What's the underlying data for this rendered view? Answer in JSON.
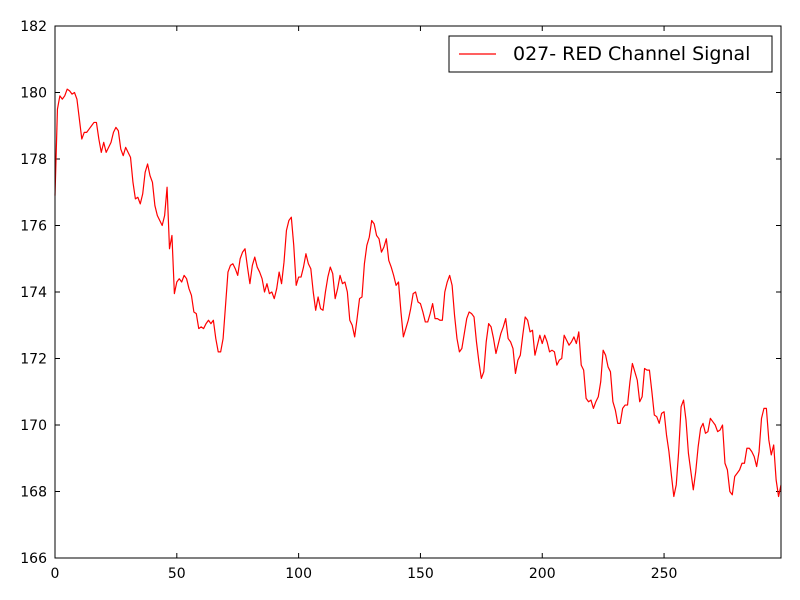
{
  "chart_data": {
    "type": "line",
    "title": "",
    "xlabel": "",
    "ylabel": "",
    "xlim": [
      0,
      298
    ],
    "ylim": [
      166,
      182
    ],
    "xticks": [
      0,
      50,
      100,
      150,
      200,
      250
    ],
    "yticks": [
      166,
      168,
      170,
      172,
      174,
      176,
      178,
      180,
      182
    ],
    "grid": false,
    "legend_position": "top-right",
    "series": [
      {
        "name": "027- RED Channel Signal",
        "color": "#ff0000",
        "points": [
          [
            0,
            176.9
          ],
          [
            1,
            179.5
          ],
          [
            2,
            179.9
          ],
          [
            3,
            179.8
          ],
          [
            4,
            179.9
          ],
          [
            5,
            180.1
          ],
          [
            6,
            180.05
          ],
          [
            7,
            179.95
          ],
          [
            8,
            180.0
          ],
          [
            9,
            179.8
          ],
          [
            10,
            179.2
          ],
          [
            11,
            178.6
          ],
          [
            12,
            178.8
          ],
          [
            13,
            178.8
          ],
          [
            14,
            178.9
          ],
          [
            15,
            179.0
          ],
          [
            16,
            179.1
          ],
          [
            17,
            179.1
          ],
          [
            18,
            178.6
          ],
          [
            19,
            178.2
          ],
          [
            20,
            178.5
          ],
          [
            21,
            178.2
          ],
          [
            22,
            178.35
          ],
          [
            23,
            178.5
          ],
          [
            24,
            178.8
          ],
          [
            25,
            178.95
          ],
          [
            26,
            178.85
          ],
          [
            27,
            178.3
          ],
          [
            28,
            178.1
          ],
          [
            29,
            178.35
          ],
          [
            30,
            178.2
          ],
          [
            31,
            178.05
          ],
          [
            32,
            177.3
          ],
          [
            33,
            176.8
          ],
          [
            34,
            176.85
          ],
          [
            35,
            176.65
          ],
          [
            36,
            176.95
          ],
          [
            37,
            177.6
          ],
          [
            38,
            177.85
          ],
          [
            39,
            177.5
          ],
          [
            40,
            177.3
          ],
          [
            41,
            176.6
          ],
          [
            42,
            176.3
          ],
          [
            43,
            176.15
          ],
          [
            44,
            176.0
          ],
          [
            45,
            176.3
          ],
          [
            46,
            177.15
          ],
          [
            47,
            175.3
          ],
          [
            48,
            175.7
          ],
          [
            49,
            173.95
          ],
          [
            50,
            174.3
          ],
          [
            51,
            174.4
          ],
          [
            52,
            174.3
          ],
          [
            53,
            174.5
          ],
          [
            54,
            174.4
          ],
          [
            55,
            174.1
          ],
          [
            56,
            173.9
          ],
          [
            57,
            173.4
          ],
          [
            58,
            173.35
          ],
          [
            59,
            172.9
          ],
          [
            60,
            172.95
          ],
          [
            61,
            172.9
          ],
          [
            62,
            173.05
          ],
          [
            63,
            173.15
          ],
          [
            64,
            173.05
          ],
          [
            65,
            173.15
          ],
          [
            66,
            172.6
          ],
          [
            67,
            172.2
          ],
          [
            68,
            172.2
          ],
          [
            69,
            172.6
          ],
          [
            70,
            173.6
          ],
          [
            71,
            174.6
          ],
          [
            72,
            174.8
          ],
          [
            73,
            174.85
          ],
          [
            74,
            174.7
          ],
          [
            75,
            174.5
          ],
          [
            76,
            175.0
          ],
          [
            77,
            175.2
          ],
          [
            78,
            175.3
          ],
          [
            79,
            174.75
          ],
          [
            80,
            174.25
          ],
          [
            81,
            174.8
          ],
          [
            82,
            175.05
          ],
          [
            83,
            174.75
          ],
          [
            84,
            174.6
          ],
          [
            85,
            174.4
          ],
          [
            86,
            174.0
          ],
          [
            87,
            174.25
          ],
          [
            88,
            173.95
          ],
          [
            89,
            174.0
          ],
          [
            90,
            173.8
          ],
          [
            91,
            174.1
          ],
          [
            92,
            174.6
          ],
          [
            93,
            174.25
          ],
          [
            94,
            174.9
          ],
          [
            95,
            175.85
          ],
          [
            96,
            176.15
          ],
          [
            97,
            176.25
          ],
          [
            98,
            175.4
          ],
          [
            99,
            174.2
          ],
          [
            100,
            174.45
          ],
          [
            101,
            174.45
          ],
          [
            102,
            174.75
          ],
          [
            103,
            175.15
          ],
          [
            104,
            174.85
          ],
          [
            105,
            174.7
          ],
          [
            106,
            174.0
          ],
          [
            107,
            173.45
          ],
          [
            108,
            173.85
          ],
          [
            109,
            173.5
          ],
          [
            110,
            173.45
          ],
          [
            111,
            174.0
          ],
          [
            112,
            174.45
          ],
          [
            113,
            174.75
          ],
          [
            114,
            174.55
          ],
          [
            115,
            173.8
          ],
          [
            116,
            174.1
          ],
          [
            117,
            174.5
          ],
          [
            118,
            174.25
          ],
          [
            119,
            174.3
          ],
          [
            120,
            174.0
          ],
          [
            121,
            173.15
          ],
          [
            122,
            173.0
          ],
          [
            123,
            172.65
          ],
          [
            124,
            173.2
          ],
          [
            125,
            173.8
          ],
          [
            126,
            173.85
          ],
          [
            127,
            174.85
          ],
          [
            128,
            175.4
          ],
          [
            129,
            175.65
          ],
          [
            130,
            176.15
          ],
          [
            131,
            176.05
          ],
          [
            132,
            175.7
          ],
          [
            133,
            175.6
          ],
          [
            134,
            175.2
          ],
          [
            135,
            175.35
          ],
          [
            136,
            175.6
          ],
          [
            137,
            174.95
          ],
          [
            138,
            174.75
          ],
          [
            139,
            174.5
          ],
          [
            140,
            174.2
          ],
          [
            141,
            174.3
          ],
          [
            142,
            173.4
          ],
          [
            143,
            172.65
          ],
          [
            144,
            172.9
          ],
          [
            145,
            173.15
          ],
          [
            146,
            173.5
          ],
          [
            147,
            173.95
          ],
          [
            148,
            174.0
          ],
          [
            149,
            173.7
          ],
          [
            150,
            173.65
          ],
          [
            151,
            173.4
          ],
          [
            152,
            173.1
          ],
          [
            153,
            173.1
          ],
          [
            154,
            173.35
          ],
          [
            155,
            173.65
          ],
          [
            156,
            173.2
          ],
          [
            157,
            173.2
          ],
          [
            158,
            173.15
          ],
          [
            159,
            173.15
          ],
          [
            160,
            174.0
          ],
          [
            161,
            174.3
          ],
          [
            162,
            174.5
          ],
          [
            163,
            174.2
          ],
          [
            164,
            173.3
          ],
          [
            165,
            172.6
          ],
          [
            166,
            172.2
          ],
          [
            167,
            172.3
          ],
          [
            168,
            172.75
          ],
          [
            169,
            173.2
          ],
          [
            170,
            173.4
          ],
          [
            171,
            173.35
          ],
          [
            172,
            173.25
          ],
          [
            173,
            172.5
          ],
          [
            174,
            171.9
          ],
          [
            175,
            171.4
          ],
          [
            176,
            171.6
          ],
          [
            177,
            172.5
          ],
          [
            178,
            173.05
          ],
          [
            179,
            172.95
          ],
          [
            180,
            172.6
          ],
          [
            181,
            172.15
          ],
          [
            182,
            172.45
          ],
          [
            183,
            172.75
          ],
          [
            184,
            172.95
          ],
          [
            185,
            173.2
          ],
          [
            186,
            172.6
          ],
          [
            187,
            172.5
          ],
          [
            188,
            172.3
          ],
          [
            189,
            171.55
          ],
          [
            190,
            171.95
          ],
          [
            191,
            172.1
          ],
          [
            192,
            172.7
          ],
          [
            193,
            173.25
          ],
          [
            194,
            173.15
          ],
          [
            195,
            172.8
          ],
          [
            196,
            172.85
          ],
          [
            197,
            172.1
          ],
          [
            198,
            172.4
          ],
          [
            199,
            172.7
          ],
          [
            200,
            172.45
          ],
          [
            201,
            172.7
          ],
          [
            202,
            172.5
          ],
          [
            203,
            172.2
          ],
          [
            204,
            172.25
          ],
          [
            205,
            172.2
          ],
          [
            206,
            171.8
          ],
          [
            207,
            171.95
          ],
          [
            208,
            172.0
          ],
          [
            209,
            172.7
          ],
          [
            210,
            172.55
          ],
          [
            211,
            172.4
          ],
          [
            212,
            172.5
          ],
          [
            213,
            172.65
          ],
          [
            214,
            172.45
          ],
          [
            215,
            172.8
          ],
          [
            216,
            171.8
          ],
          [
            217,
            171.65
          ],
          [
            218,
            170.8
          ],
          [
            219,
            170.7
          ],
          [
            220,
            170.75
          ],
          [
            221,
            170.5
          ],
          [
            222,
            170.7
          ],
          [
            223,
            170.85
          ],
          [
            224,
            171.3
          ],
          [
            225,
            172.25
          ],
          [
            226,
            172.1
          ],
          [
            227,
            171.75
          ],
          [
            228,
            171.6
          ],
          [
            229,
            170.7
          ],
          [
            230,
            170.45
          ],
          [
            231,
            170.05
          ],
          [
            232,
            170.05
          ],
          [
            233,
            170.5
          ],
          [
            234,
            170.6
          ],
          [
            235,
            170.6
          ],
          [
            236,
            171.3
          ],
          [
            237,
            171.85
          ],
          [
            238,
            171.6
          ],
          [
            239,
            171.35
          ],
          [
            240,
            170.7
          ],
          [
            241,
            170.85
          ],
          [
            242,
            171.7
          ],
          [
            243,
            171.65
          ],
          [
            244,
            171.65
          ],
          [
            245,
            171.0
          ],
          [
            246,
            170.3
          ],
          [
            247,
            170.25
          ],
          [
            248,
            170.05
          ],
          [
            249,
            170.35
          ],
          [
            250,
            170.4
          ],
          [
            251,
            169.7
          ],
          [
            252,
            169.2
          ],
          [
            253,
            168.5
          ],
          [
            254,
            167.85
          ],
          [
            255,
            168.2
          ],
          [
            256,
            169.2
          ],
          [
            257,
            170.55
          ],
          [
            258,
            170.75
          ],
          [
            259,
            170.15
          ],
          [
            260,
            169.15
          ],
          [
            261,
            168.6
          ],
          [
            262,
            168.05
          ],
          [
            263,
            168.6
          ],
          [
            264,
            169.35
          ],
          [
            265,
            169.9
          ],
          [
            266,
            170.05
          ],
          [
            267,
            169.75
          ],
          [
            268,
            169.8
          ],
          [
            269,
            170.2
          ],
          [
            270,
            170.1
          ],
          [
            271,
            170.0
          ],
          [
            272,
            169.8
          ],
          [
            273,
            169.85
          ],
          [
            274,
            170.0
          ],
          [
            275,
            168.85
          ],
          [
            276,
            168.65
          ],
          [
            277,
            168.0
          ],
          [
            278,
            167.9
          ],
          [
            279,
            168.45
          ],
          [
            280,
            168.55
          ],
          [
            281,
            168.65
          ],
          [
            282,
            168.85
          ],
          [
            283,
            168.85
          ],
          [
            284,
            169.3
          ],
          [
            285,
            169.3
          ],
          [
            286,
            169.2
          ],
          [
            287,
            169.05
          ],
          [
            288,
            168.75
          ],
          [
            289,
            169.2
          ],
          [
            290,
            170.2
          ],
          [
            291,
            170.5
          ],
          [
            292,
            170.5
          ],
          [
            293,
            169.55
          ],
          [
            294,
            169.1
          ],
          [
            295,
            169.4
          ],
          [
            296,
            168.35
          ],
          [
            297,
            167.85
          ],
          [
            298,
            168.2
          ]
        ]
      }
    ]
  }
}
